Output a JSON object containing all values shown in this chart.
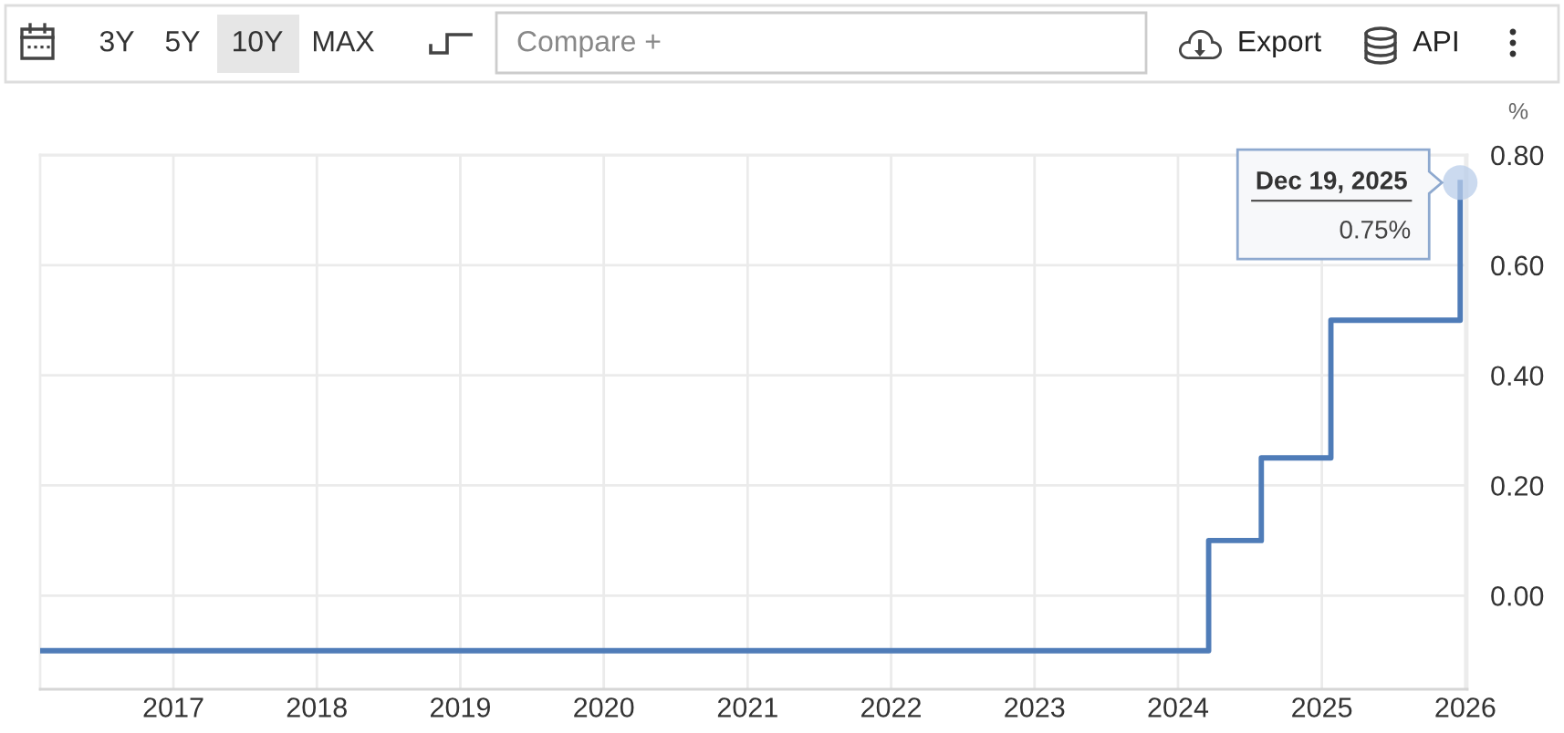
{
  "chart_data": {
    "type": "step",
    "x": [
      "2016-01-28",
      "2024-03-19",
      "2024-07-31",
      "2025-01-24",
      "2025-12-19"
    ],
    "series": [
      {
        "color": "#4f7cb8",
        "values": [
          -0.1,
          0.1,
          0.25,
          0.5,
          0.75
        ]
      }
    ],
    "ylabel": "%",
    "xlim": [
      "2016-01-28",
      "2026-01-06"
    ],
    "xticks": [
      "2017",
      "2018",
      "2019",
      "2020",
      "2021",
      "2022",
      "2023",
      "2024",
      "2025",
      "2026"
    ],
    "ylim": [
      -0.17,
      0.8
    ],
    "yticks": [
      {
        "value": 0,
        "label": "0.00"
      },
      {
        "value": 0.2,
        "label": "0.20"
      },
      {
        "value": 0.4,
        "label": "0.40"
      },
      {
        "value": 0.6,
        "label": "0.60"
      },
      {
        "value": 0.8,
        "label": "0.80"
      }
    ],
    "grid": true,
    "line_style": "solid",
    "annotations": [
      "3Y",
      "5Y",
      "10Y",
      "MAX",
      "Compare +",
      "Export",
      "API",
      {
        "text": "Dec 19, 2025\n0.75%",
        "x": "2025-12-19",
        "y": 0.75
      }
    ]
  }
}
